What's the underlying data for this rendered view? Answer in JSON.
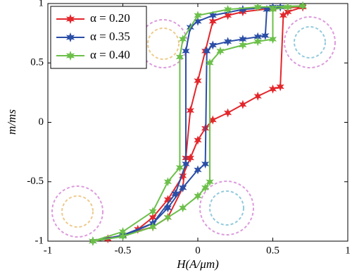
{
  "chart_data": {
    "type": "line",
    "xlabel": "H(A/μm)",
    "ylabel": "m/ms",
    "xlim": [
      -1,
      1
    ],
    "ylim": [
      -1,
      1
    ],
    "xticks": [
      -1,
      -0.5,
      0,
      0.5,
      1
    ],
    "yticks": [
      -1,
      -0.5,
      0,
      0.5,
      1
    ],
    "legend": "upper left",
    "series": [
      {
        "name": "α = 0.20",
        "color": "#e3262b",
        "x": [
          -0.7,
          -0.6,
          -0.5,
          -0.4,
          -0.3,
          -0.2,
          -0.1,
          -0.05,
          0,
          0.05,
          0.1,
          0.2,
          0.3,
          0.4,
          0.5,
          0.55,
          0.57,
          0.6,
          0.7,
          0.5,
          0.3,
          0.2,
          0.1,
          0.05,
          0,
          -0.05,
          -0.08,
          -0.1,
          -0.2,
          -0.3,
          -0.5,
          -0.7
        ],
        "values": [
          -1,
          -0.98,
          -0.95,
          -0.9,
          -0.8,
          -0.65,
          -0.45,
          -0.3,
          -0.15,
          -0.05,
          0.02,
          0.08,
          0.15,
          0.22,
          0.28,
          0.3,
          0.9,
          0.93,
          0.97,
          0.96,
          0.93,
          0.9,
          0.85,
          0.6,
          0.35,
          0.1,
          -0.3,
          -0.55,
          -0.8,
          -0.88,
          -0.95,
          -1
        ]
      },
      {
        "name": "α = 0.35",
        "color": "#2b4ea6",
        "x": [
          -0.7,
          -0.5,
          -0.3,
          -0.2,
          -0.1,
          0,
          0.05,
          0.06,
          0.1,
          0.2,
          0.3,
          0.4,
          0.45,
          0.46,
          0.55,
          0.7,
          0.5,
          0.3,
          0.1,
          0,
          -0.05,
          -0.08,
          -0.08,
          -0.15,
          -0.3,
          -0.5,
          -0.7
        ],
        "values": [
          -1,
          -0.96,
          -0.85,
          -0.72,
          -0.55,
          -0.4,
          -0.35,
          0.6,
          0.65,
          0.68,
          0.7,
          0.72,
          0.73,
          0.95,
          0.97,
          0.98,
          0.97,
          0.95,
          0.9,
          0.85,
          0.8,
          0.6,
          -0.35,
          -0.6,
          -0.85,
          -0.95,
          -1
        ]
      },
      {
        "name": "α = 0.40",
        "color": "#6cc04a",
        "x": [
          -0.7,
          -0.5,
          -0.3,
          -0.2,
          -0.1,
          0,
          0.05,
          0.08,
          0.08,
          0.15,
          0.3,
          0.4,
          0.5,
          0.5,
          0.6,
          0.7,
          0.4,
          0.2,
          0,
          -0.1,
          -0.12,
          -0.12,
          -0.2,
          -0.3,
          -0.5,
          -0.7
        ],
        "values": [
          -1,
          -0.96,
          -0.88,
          -0.8,
          -0.72,
          -0.62,
          -0.55,
          -0.5,
          0.5,
          0.6,
          0.65,
          0.68,
          0.7,
          0.95,
          0.97,
          0.98,
          0.97,
          0.95,
          0.9,
          0.7,
          0.55,
          -0.38,
          -0.5,
          -0.75,
          -0.92,
          -1
        ]
      }
    ]
  }
}
